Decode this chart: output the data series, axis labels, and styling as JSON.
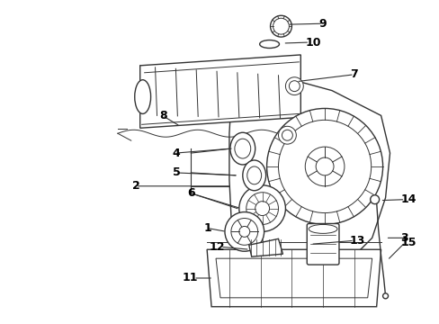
{
  "bg_color": "#ffffff",
  "line_color": "#333333",
  "label_color": "#000000",
  "fig_width": 4.89,
  "fig_height": 3.6,
  "dpi": 100,
  "label_fontsize": 9
}
